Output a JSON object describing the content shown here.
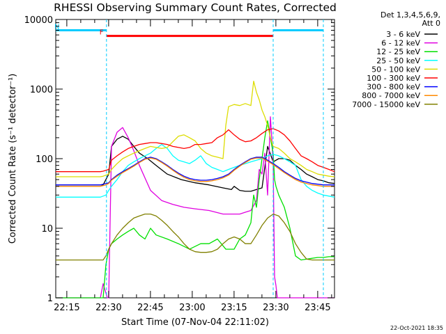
{
  "chart_data": {
    "type": "line",
    "title": "RHESSI Observing Summary Count Rates, Corrected",
    "xlabel": "Start Time (07-Nov-04 22:11:02)",
    "ylabel": "Corrected Count Rate (s⁻¹ detector⁻¹)",
    "x_unit": "minutes after 22:11:02",
    "xlim": [
      0,
      100
    ],
    "ylim": [
      1,
      10000
    ],
    "yscale": "log",
    "x_ticks": [
      {
        "label": "22:15",
        "x": 3.97
      },
      {
        "label": "22:30",
        "x": 18.97
      },
      {
        "label": "22:45",
        "x": 33.97
      },
      {
        "label": "23:00",
        "x": 48.97
      },
      {
        "label": "23:15",
        "x": 63.97
      },
      {
        "label": "23:30",
        "x": 78.97
      },
      {
        "label": "23:45",
        "x": 93.97
      }
    ],
    "y_ticks": [
      {
        "label": "1",
        "y": 1
      },
      {
        "label": "10",
        "y": 10
      },
      {
        "label": "100",
        "y": 100
      },
      {
        "label": "1000",
        "y": 1000
      },
      {
        "label": "10000",
        "y": 10000
      }
    ],
    "legend_header": [
      "Det 1,3,4,5,6,9,",
      "Att 0"
    ],
    "legend_position": "right",
    "series": [
      {
        "name": "3 - 6 keV",
        "color": "#000000",
        "x": [
          0,
          10,
          17,
          19,
          20,
          22,
          24,
          26,
          28,
          30,
          33,
          36,
          40,
          45,
          50,
          55,
          60,
          63,
          64,
          66,
          68,
          70,
          72,
          74,
          76,
          78,
          80,
          82,
          84,
          86,
          88,
          90,
          92,
          94,
          96,
          98,
          100
        ],
        "y": [
          42,
          42,
          42,
          60,
          150,
          190,
          210,
          190,
          150,
          120,
          100,
          80,
          60,
          50,
          45,
          42,
          38,
          36,
          40,
          35,
          34,
          34,
          36,
          38,
          150,
          90,
          100,
          100,
          95,
          80,
          70,
          60,
          55,
          50,
          48,
          45,
          44
        ]
      },
      {
        "name": "6 - 12 keV",
        "color": "#e000e0",
        "x": [
          0,
          10,
          16,
          17,
          18.5,
          19,
          20,
          22,
          24,
          26,
          28,
          30,
          34,
          38,
          42,
          46,
          50,
          55,
          60,
          64,
          66,
          68,
          70,
          72,
          73,
          74,
          75,
          76,
          77,
          77.5,
          78,
          78.5,
          79,
          79.5,
          80,
          82,
          84,
          86,
          88,
          90,
          92,
          94,
          96,
          98,
          100
        ],
        "y": [
          1,
          1,
          1,
          1.6,
          1,
          1,
          150,
          240,
          280,
          200,
          130,
          80,
          35,
          25,
          22,
          20,
          19,
          18,
          16,
          16,
          16,
          17,
          18,
          25,
          70,
          60,
          120,
          30,
          400,
          200,
          80,
          2,
          1.5,
          1,
          1,
          1,
          1,
          1,
          1,
          1,
          1,
          1,
          1,
          1,
          1
        ]
      },
      {
        "name": "12 - 25 keV",
        "color": "#00e000",
        "x": [
          0,
          10,
          17,
          18,
          19,
          20,
          22,
          24,
          26,
          28,
          30,
          32,
          34,
          36,
          40,
          44,
          48,
          52,
          55,
          58,
          61,
          64,
          66,
          68,
          70,
          71,
          72,
          73,
          74,
          75,
          76,
          77,
          78,
          78.5,
          79,
          80,
          82,
          84,
          86,
          88,
          90,
          92,
          94,
          96,
          98,
          100
        ],
        "y": [
          1,
          1,
          1,
          3,
          5,
          6,
          7,
          8,
          9,
          10,
          8,
          7,
          10,
          8,
          7,
          6,
          5,
          6,
          6,
          7,
          5,
          5,
          7,
          8,
          12,
          30,
          20,
          50,
          100,
          200,
          350,
          200,
          120,
          50,
          40,
          30,
          20,
          10,
          4,
          3.5,
          3.6,
          3.7,
          3.8,
          3.8,
          3.9,
          3.9
        ]
      },
      {
        "name": "25 - 50 keV",
        "color": "#00ffff",
        "x": [
          0,
          10,
          16,
          17,
          18,
          19,
          20,
          22,
          24,
          26,
          28,
          30,
          32,
          34,
          36,
          38,
          40,
          42,
          44,
          46,
          48,
          50,
          52,
          54,
          56,
          58,
          60,
          62,
          64,
          66,
          68,
          70,
          72,
          74,
          76,
          78,
          80,
          82,
          84,
          86,
          88,
          90,
          92,
          94,
          96,
          98,
          100
        ],
        "y": [
          28,
          28,
          28,
          29,
          30,
          35,
          40,
          50,
          65,
          80,
          90,
          100,
          110,
          120,
          140,
          160,
          140,
          110,
          95,
          90,
          85,
          95,
          110,
          85,
          75,
          70,
          65,
          70,
          75,
          80,
          85,
          90,
          95,
          100,
          110,
          115,
          110,
          100,
          90,
          80,
          50,
          40,
          35,
          32,
          30,
          29,
          28
        ]
      },
      {
        "name": "50 - 100 keV",
        "color": "#dddd00",
        "x": [
          0,
          10,
          16,
          17,
          18,
          19,
          20,
          22,
          24,
          26,
          28,
          30,
          32,
          34,
          36,
          38,
          40,
          42,
          44,
          46,
          48,
          50,
          52,
          54,
          56,
          58,
          60,
          61,
          62,
          64,
          66,
          68,
          70,
          71,
          72,
          73,
          74,
          75,
          76,
          77,
          78,
          80,
          82,
          84,
          86,
          88,
          90,
          92,
          94,
          96,
          98,
          100
        ],
        "y": [
          55,
          55,
          55,
          56,
          58,
          60,
          70,
          85,
          100,
          110,
          120,
          130,
          140,
          150,
          145,
          140,
          145,
          175,
          210,
          220,
          200,
          180,
          140,
          120,
          110,
          105,
          100,
          300,
          560,
          600,
          580,
          620,
          580,
          1300,
          900,
          700,
          500,
          400,
          300,
          200,
          150,
          140,
          120,
          100,
          90,
          80,
          70,
          65,
          60,
          58,
          56,
          55
        ]
      },
      {
        "name": "100 - 300 keV",
        "color": "#ff0000",
        "x": [
          0,
          10,
          16,
          17,
          18,
          19,
          20,
          22,
          24,
          26,
          28,
          30,
          32,
          34,
          36,
          38,
          40,
          42,
          44,
          46,
          48,
          50,
          52,
          54,
          56,
          58,
          60,
          62,
          64,
          66,
          68,
          70,
          72,
          74,
          76,
          78,
          80,
          82,
          84,
          86,
          88,
          90,
          92,
          94,
          96,
          98,
          100
        ],
        "y": [
          65,
          65,
          65,
          66,
          68,
          70,
          95,
          110,
          125,
          140,
          150,
          160,
          165,
          170,
          170,
          165,
          160,
          150,
          145,
          140,
          145,
          160,
          160,
          165,
          170,
          200,
          220,
          260,
          220,
          190,
          175,
          180,
          200,
          230,
          260,
          270,
          250,
          220,
          180,
          140,
          110,
          100,
          90,
          80,
          75,
          70,
          65
        ]
      },
      {
        "name": "300 - 800 keV",
        "color": "#0000ff",
        "x": [
          0,
          10,
          16,
          17,
          18,
          19,
          20,
          22,
          24,
          26,
          28,
          30,
          32,
          34,
          36,
          38,
          40,
          42,
          44,
          46,
          48,
          50,
          52,
          54,
          56,
          58,
          60,
          62,
          64,
          66,
          68,
          70,
          72,
          74,
          76,
          78,
          80,
          82,
          84,
          86,
          88,
          90,
          92,
          94,
          96,
          98,
          100
        ],
        "y": [
          42,
          42,
          42,
          43,
          44,
          45,
          50,
          58,
          65,
          72,
          80,
          90,
          100,
          105,
          100,
          90,
          80,
          70,
          62,
          56,
          52,
          50,
          49,
          49,
          50,
          52,
          55,
          60,
          70,
          80,
          90,
          100,
          105,
          105,
          95,
          85,
          75,
          65,
          58,
          52,
          48,
          46,
          44,
          43,
          42,
          42,
          42
        ]
      },
      {
        "name": "800 - 7000 keV",
        "color": "#ff8800",
        "x": [
          0,
          10,
          16,
          17,
          18,
          19,
          20,
          22,
          24,
          26,
          28,
          30,
          32,
          34,
          36,
          38,
          40,
          42,
          44,
          46,
          48,
          50,
          52,
          54,
          56,
          58,
          60,
          62,
          64,
          66,
          68,
          70,
          72,
          74,
          76,
          78,
          80,
          82,
          84,
          86,
          88,
          90,
          92,
          94,
          96,
          98,
          100
        ],
        "y": [
          40,
          40,
          40,
          41,
          42,
          44,
          49,
          56,
          63,
          70,
          78,
          88,
          98,
          102,
          98,
          88,
          78,
          68,
          60,
          54,
          50,
          48,
          47,
          47,
          48,
          50,
          53,
          58,
          68,
          78,
          88,
          98,
          102,
          102,
          92,
          82,
          72,
          63,
          56,
          50,
          46,
          44,
          42,
          41,
          40,
          40,
          40
        ]
      },
      {
        "name": "7000 - 15000 keV",
        "color": "#808000",
        "x": [
          0,
          10,
          17,
          18,
          19,
          20,
          22,
          24,
          26,
          28,
          30,
          32,
          34,
          36,
          38,
          40,
          42,
          44,
          46,
          48,
          50,
          52,
          54,
          56,
          58,
          60,
          62,
          64,
          66,
          68,
          70,
          72,
          74,
          76,
          78,
          80,
          82,
          84,
          86,
          88,
          90,
          92,
          94,
          96,
          98,
          100
        ],
        "y": [
          3.5,
          3.5,
          3.5,
          4,
          5,
          6,
          8,
          10,
          12,
          14,
          15,
          16,
          16,
          15,
          13,
          11,
          9,
          7.5,
          6,
          5,
          4.6,
          4.5,
          4.5,
          4.6,
          5,
          6,
          7,
          7.5,
          7,
          6,
          6,
          8,
          11,
          14,
          16,
          15,
          12,
          9,
          6,
          4.5,
          3.6,
          3.5,
          3.5,
          3.5,
          3.5,
          3.5
        ]
      }
    ],
    "flag_bars": [
      {
        "label": "N",
        "color": "#00ccff",
        "segments": [
          [
            0,
            18.2
          ],
          [
            78,
            96
          ]
        ],
        "level": 7000
      },
      {
        "label": "F",
        "color": "#ff0000",
        "segments": [
          [
            18.2,
            78
          ]
        ],
        "level": 5800
      }
    ]
  },
  "timestamp": "22-Oct-2021 18:35"
}
